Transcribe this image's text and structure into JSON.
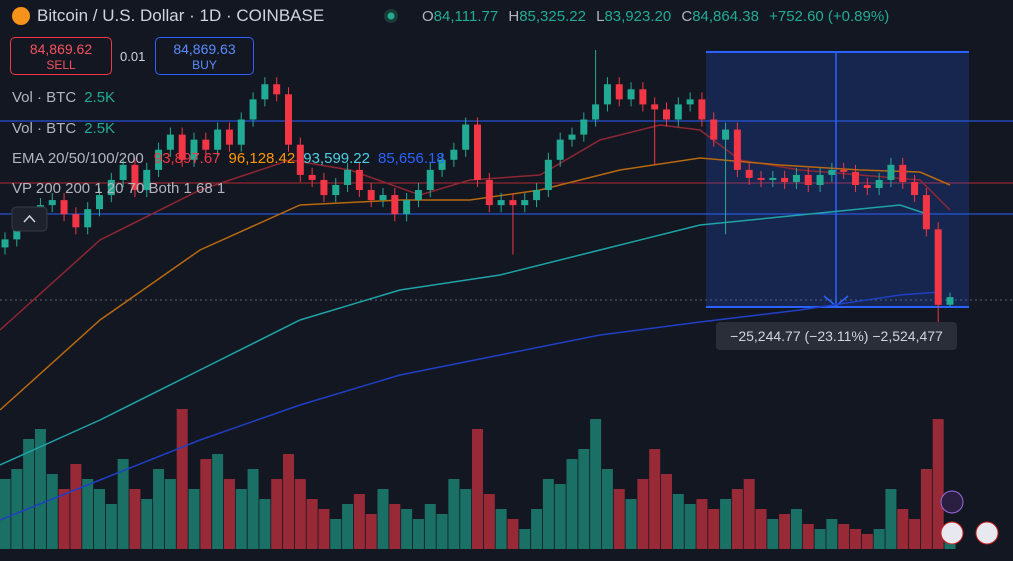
{
  "header": {
    "symbol": "Bitcoin / U.S. Dollar · 1D · COINBASE",
    "ohlc": [
      {
        "label": "O",
        "value": "84,111.77"
      },
      {
        "label": "H",
        "value": "85,325.22"
      },
      {
        "label": "L",
        "value": "83,923.20"
      },
      {
        "label": "C",
        "value": "84,864.38"
      }
    ],
    "change": "+752.60 (+0.89%)"
  },
  "trade": {
    "sell_price": "84,869.62",
    "sell_label": "SELL",
    "spread": "0.01",
    "buy_price": "84,869.63",
    "buy_label": "BUY"
  },
  "indicators": [
    {
      "name": "Vol · BTC",
      "values": [
        "2.5K"
      ]
    },
    {
      "name": "Vol · BTC",
      "values": [
        "2.5K"
      ]
    },
    {
      "name": "EMA 20/50/100/200",
      "values": [
        "93,897.67",
        "96,128.42",
        "93,599.22",
        "85,656.18"
      ]
    },
    {
      "name": "VP 200 200 1 20 70 Both 1 68 1",
      "values": []
    }
  ],
  "measure": {
    "label": "−25,244.77 (−23.11%) −2,524,477"
  },
  "candles": {
    "up_color": "#22ab94",
    "down_color": "#f23645",
    "open": [
      89800,
      90600,
      92100,
      93100,
      94000,
      94500,
      93100,
      91800,
      93600,
      95000,
      96500,
      98000,
      95500,
      97500,
      99500,
      101000,
      98500,
      100500,
      99500,
      101500,
      100000,
      102500,
      104500,
      106000,
      105000,
      100000,
      97000,
      96500,
      95000,
      96000,
      97500,
      95500,
      94500,
      95000,
      93100,
      94500,
      95500,
      97500,
      98500,
      99500,
      102000,
      96500,
      94000,
      94500,
      94000,
      94500,
      95500,
      98500,
      100500,
      101000,
      102500,
      104000,
      106000,
      104500,
      105500,
      104000,
      103500,
      102500,
      104000,
      104500,
      102500,
      100500,
      101500,
      97500,
      96700,
      96500,
      96700,
      96300,
      97000,
      96000,
      97000,
      97500,
      97300,
      96000,
      95700,
      96500,
      98000,
      96300,
      95000,
      91600,
      84111.77
    ],
    "high": [
      91300,
      92800,
      93800,
      94700,
      95200,
      95200,
      93800,
      94300,
      95700,
      97200,
      98700,
      98700,
      98200,
      100200,
      101700,
      101700,
      101200,
      101200,
      102200,
      102200,
      103200,
      105200,
      106700,
      106700,
      105700,
      100700,
      97700,
      97200,
      96700,
      98200,
      98200,
      96200,
      95700,
      95700,
      95200,
      96200,
      98200,
      99200,
      100200,
      102700,
      102700,
      97200,
      95200,
      95200,
      95200,
      96200,
      99200,
      101200,
      101700,
      103200,
      109400,
      106700,
      106700,
      106200,
      106200,
      104700,
      104200,
      104700,
      105200,
      105200,
      103200,
      102200,
      102200,
      98200,
      97400,
      97400,
      97400,
      97700,
      97700,
      97700,
      98200,
      98200,
      98000,
      96700,
      97200,
      98700,
      98700,
      97000,
      95700,
      92300,
      85325.22
    ],
    "low": [
      89100,
      89900,
      91400,
      92400,
      93300,
      92400,
      91100,
      91100,
      92900,
      94300,
      95800,
      94800,
      94800,
      96800,
      98800,
      97800,
      97800,
      98800,
      98800,
      99300,
      99300,
      101800,
      103800,
      104300,
      99300,
      96300,
      95800,
      94300,
      94300,
      95300,
      94800,
      93800,
      93800,
      92400,
      92400,
      93800,
      94800,
      96800,
      97800,
      98800,
      95800,
      93300,
      93300,
      89100,
      93300,
      93800,
      94800,
      97800,
      99800,
      100300,
      101800,
      103300,
      103800,
      103800,
      103300,
      98000,
      101800,
      101800,
      103300,
      101800,
      99800,
      91100,
      96800,
      96000,
      95800,
      95800,
      95600,
      95600,
      95300,
      95300,
      96300,
      96600,
      95300,
      95000,
      95000,
      95800,
      95600,
      94300,
      90900,
      82200,
      83923.2
    ],
    "close": [
      90600,
      92100,
      93100,
      94000,
      94500,
      93100,
      91800,
      93600,
      95000,
      96500,
      98000,
      95500,
      97500,
      99500,
      101000,
      98500,
      100500,
      99500,
      101500,
      100000,
      102500,
      104500,
      106000,
      105000,
      100000,
      97000,
      96500,
      95000,
      96000,
      97500,
      95500,
      94500,
      95000,
      93100,
      94500,
      95500,
      97500,
      98500,
      99500,
      102000,
      96500,
      94000,
      94500,
      94000,
      94500,
      95500,
      98500,
      100500,
      101000,
      102500,
      104000,
      106000,
      104500,
      105500,
      104000,
      103500,
      102500,
      104000,
      104500,
      102500,
      100500,
      101500,
      97500,
      96700,
      96500,
      96700,
      96300,
      97000,
      96000,
      97000,
      97500,
      97300,
      96000,
      95700,
      96500,
      98000,
      96300,
      95000,
      91600,
      84100,
      84864.38
    ],
    "volume": [
      14000,
      16000,
      22000,
      24000,
      15000,
      12000,
      17000,
      14000,
      12000,
      9000,
      18000,
      12000,
      10000,
      16000,
      14000,
      28000,
      12000,
      18000,
      19000,
      14000,
      12000,
      16000,
      10000,
      14000,
      19000,
      14000,
      10000,
      8000,
      6000,
      9000,
      11000,
      7000,
      12000,
      9000,
      8000,
      6000,
      9000,
      7000,
      14000,
      12000,
      24000,
      11000,
      8000,
      6000,
      4000,
      8000,
      14000,
      13000,
      18000,
      20000,
      26000,
      16000,
      12000,
      10000,
      14000,
      20000,
      15000,
      11000,
      9000,
      10000,
      8000,
      10000,
      12000,
      14000,
      8000,
      6000,
      7000,
      8000,
      5000,
      4000,
      6000,
      5000,
      4000,
      3000,
      4000,
      12000,
      8000,
      6000,
      16000,
      26000,
      2500
    ]
  }
}
